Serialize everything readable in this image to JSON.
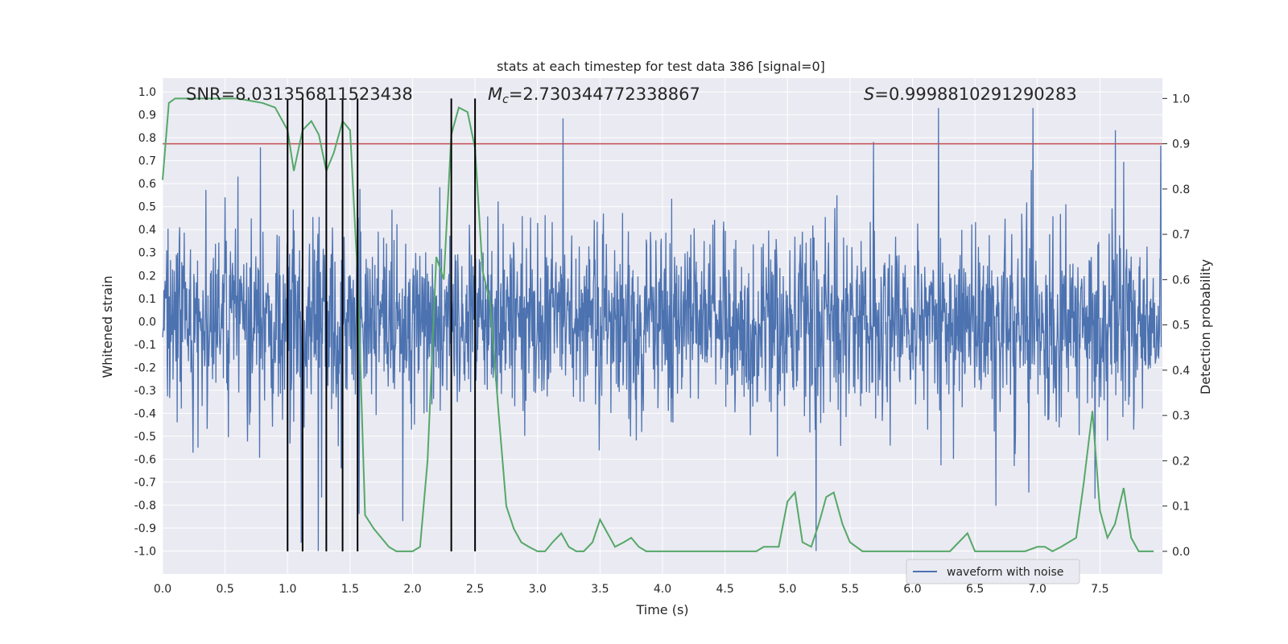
{
  "chart_data": {
    "type": "line",
    "title": "stats at each timestep for test data 386 [signal=0]",
    "xlabel": "Time (s)",
    "ylabel": "Whitened strain",
    "ylabel_right": "Detection probability",
    "xlim": [
      0.0,
      8.0
    ],
    "ylim": [
      -1.1,
      1.06
    ],
    "ylim_right": [
      -0.05,
      1.045
    ],
    "x_ticks": [
      "0.0",
      "0.5",
      "1.0",
      "1.5",
      "2.0",
      "2.5",
      "3.0",
      "3.5",
      "4.0",
      "4.5",
      "5.0",
      "5.5",
      "6.0",
      "6.5",
      "7.0",
      "7.5"
    ],
    "y_ticks": [
      "1.0",
      "0.9",
      "0.8",
      "0.7",
      "0.6",
      "0.5",
      "0.4",
      "0.3",
      "0.2",
      "0.1",
      "0.0",
      "-0.1",
      "-0.2",
      "-0.3",
      "-0.4",
      "-0.5",
      "-0.6",
      "-0.7",
      "-0.8",
      "-0.9",
      "-1.0"
    ],
    "y_ticks_right": [
      "1.0",
      "0.9",
      "0.8",
      "0.7",
      "0.6",
      "0.5",
      "0.4",
      "0.3",
      "0.2",
      "0.1",
      "0.0"
    ],
    "annotations": {
      "snr": "SNR=8.031356811523438",
      "mc_symbol": "M",
      "mc_sub": "c",
      "mc_value": "=2.730344772338867",
      "s_symbol": "S",
      "s_value": "=0.9998810291290283"
    },
    "threshold": {
      "value": 0.9,
      "color": "#c44e52"
    },
    "vertical_markers": [
      1.0,
      1.12,
      1.31,
      1.44,
      1.56,
      2.31,
      2.5
    ],
    "legend": {
      "position": "lower-right",
      "entries": [
        "waveform with noise"
      ]
    },
    "grid": true,
    "colors": {
      "waveform": "#4c72b0",
      "probability": "#55a868",
      "markers": "#000000",
      "background": "#eaeaf2"
    },
    "series": [
      {
        "name": "waveform with noise",
        "axis": "left",
        "description_range": [
          -1.0,
          0.93
        ]
      },
      {
        "axis": "right",
        "x": [
          0.0,
          0.05,
          0.1,
          0.2,
          0.3,
          0.4,
          0.5,
          0.6,
          0.7,
          0.8,
          0.9,
          1.0,
          1.05,
          1.12,
          1.19,
          1.25,
          1.31,
          1.37,
          1.44,
          1.5,
          1.56,
          1.62,
          1.69,
          1.75,
          1.81,
          1.87,
          1.93,
          2.0,
          2.06,
          2.12,
          2.19,
          2.25,
          2.31,
          2.37,
          2.44,
          2.5,
          2.56,
          2.62,
          2.69,
          2.75,
          2.81,
          2.87,
          2.93,
          3.0,
          3.06,
          3.12,
          3.19,
          3.25,
          3.31,
          3.37,
          3.44,
          3.5,
          3.56,
          3.62,
          3.69,
          3.75,
          3.81,
          3.87,
          3.93,
          4.0,
          4.2,
          4.4,
          4.6,
          4.75,
          4.81,
          4.87,
          4.93,
          5.0,
          5.06,
          5.12,
          5.19,
          5.25,
          5.31,
          5.37,
          5.44,
          5.5,
          5.6,
          5.7,
          5.8,
          5.9,
          6.0,
          6.1,
          6.2,
          6.3,
          6.37,
          6.44,
          6.5,
          6.6,
          6.7,
          6.8,
          6.9,
          7.0,
          7.06,
          7.12,
          7.19,
          7.25,
          7.31,
          7.37,
          7.44,
          7.5,
          7.56,
          7.62,
          7.69,
          7.75,
          7.81,
          7.87,
          7.93
        ],
        "values": [
          0.82,
          0.99,
          1.0,
          1.0,
          1.0,
          1.0,
          1.0,
          1.0,
          0.995,
          0.99,
          0.98,
          0.93,
          0.84,
          0.93,
          0.95,
          0.92,
          0.84,
          0.88,
          0.95,
          0.93,
          0.61,
          0.08,
          0.05,
          0.03,
          0.01,
          0.0,
          0.0,
          0.0,
          0.01,
          0.2,
          0.65,
          0.6,
          0.92,
          0.98,
          0.97,
          0.89,
          0.62,
          0.55,
          0.3,
          0.1,
          0.05,
          0.02,
          0.01,
          0.0,
          0.0,
          0.02,
          0.04,
          0.01,
          0.0,
          0.0,
          0.02,
          0.07,
          0.04,
          0.01,
          0.02,
          0.03,
          0.01,
          0.0,
          0.0,
          0.0,
          0.0,
          0.0,
          0.0,
          0.0,
          0.01,
          0.01,
          0.01,
          0.11,
          0.13,
          0.02,
          0.01,
          0.06,
          0.12,
          0.13,
          0.06,
          0.02,
          0.0,
          0.0,
          0.0,
          0.0,
          0.0,
          0.0,
          0.0,
          0.0,
          0.02,
          0.04,
          0.0,
          0.0,
          0.0,
          0.0,
          0.0,
          0.01,
          0.01,
          0.0,
          0.01,
          0.02,
          0.03,
          0.15,
          0.31,
          0.09,
          0.03,
          0.06,
          0.14,
          0.03,
          0.0,
          0.0,
          0.0
        ]
      }
    ]
  }
}
